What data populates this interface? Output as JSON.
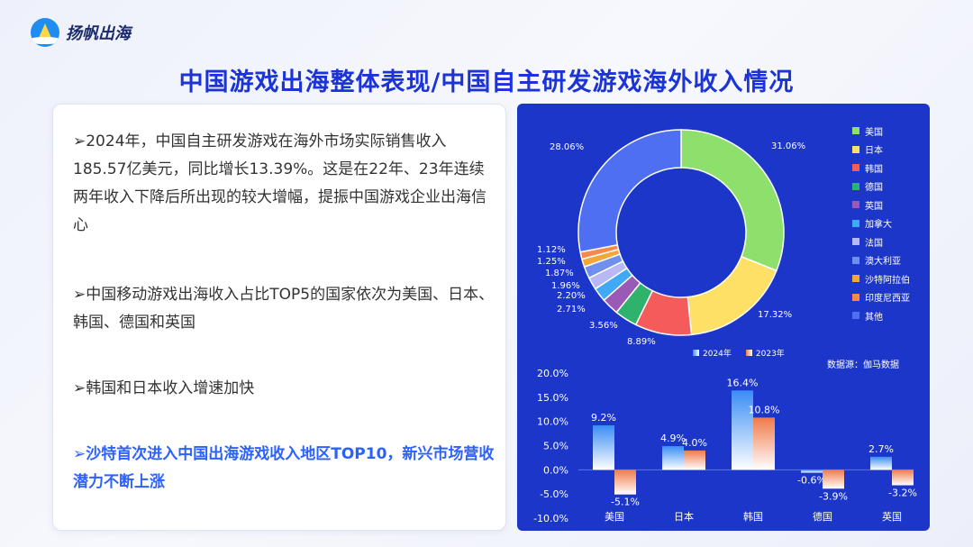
{
  "brand": {
    "name": "扬帆出海"
  },
  "title": "中国游戏出海整体表现/中国自主研发游戏海外收入情况",
  "bullets": [
    {
      "text": "➢2024年，中国自主研发游戏在海外市场实际销售收入185.57亿美元，同比增长13.39%。这是在22年、23年连续两年收入下降后所出现的较大增幅，提振中国游戏企业出海信心"
    },
    {
      "text": "➢中国移动游戏出海收入占比TOP5的国家依次为美国、日本、韩国、德国和英国"
    },
    {
      "text": "➢韩国和日本收入增速加快"
    },
    {
      "text": "➢沙特首次进入中国出海游戏收入地区TOP10，新兴市场营收潜力不断上涨"
    }
  ],
  "source": "数据源：伽马数据",
  "chart_data": [
    {
      "type": "pie",
      "variant": "donut",
      "legend_position": "right",
      "categories": [
        "美国",
        "日本",
        "韩国",
        "德国",
        "英国",
        "加拿大",
        "法国",
        "澳大利亚",
        "沙特阿拉伯",
        "印度尼西亚",
        "其他"
      ],
      "values": [
        31.06,
        17.32,
        8.89,
        3.56,
        2.71,
        2.2,
        1.96,
        1.87,
        1.25,
        1.12,
        28.06
      ],
      "labels": [
        "31.06%",
        "17.32%",
        "8.89%",
        "3.56%",
        "2.71%",
        "2.20%",
        "1.96%",
        "1.87%",
        "1.25%",
        "1.12%",
        "28.06%"
      ],
      "colors": [
        "#8ee06d",
        "#ffe066",
        "#f45b5b",
        "#2fb36c",
        "#9b59b6",
        "#3fa9f5",
        "#b8b8f5",
        "#6e8ff0",
        "#f5a63b",
        "#f58a4b",
        "#4f6ff2"
      ]
    },
    {
      "type": "bar",
      "categories": [
        "美国",
        "日本",
        "韩国",
        "德国",
        "英国"
      ],
      "series": [
        {
          "name": "2024年",
          "values": [
            9.2,
            4.9,
            16.4,
            -0.6,
            2.7
          ],
          "labels": [
            "9.2%",
            "4.9%",
            "16.4%",
            "-0.6%",
            "2.7%"
          ],
          "color": "#3a8df5"
        },
        {
          "name": "2023年",
          "values": [
            -5.1,
            4.0,
            10.8,
            -3.9,
            -3.2
          ],
          "labels": [
            "-5.1%",
            "4.0%",
            "10.8%",
            "-3.9%",
            "-3.2%"
          ],
          "color": "#f07a4a"
        }
      ],
      "ylim": [
        -10,
        20
      ],
      "yticks": [
        -10,
        -5,
        0,
        5,
        10,
        15,
        20
      ],
      "ytick_labels": [
        "-10.0%",
        "-5.0%",
        "0.0%",
        "5.0%",
        "10.0%",
        "15.0%",
        "20.0%"
      ]
    }
  ]
}
